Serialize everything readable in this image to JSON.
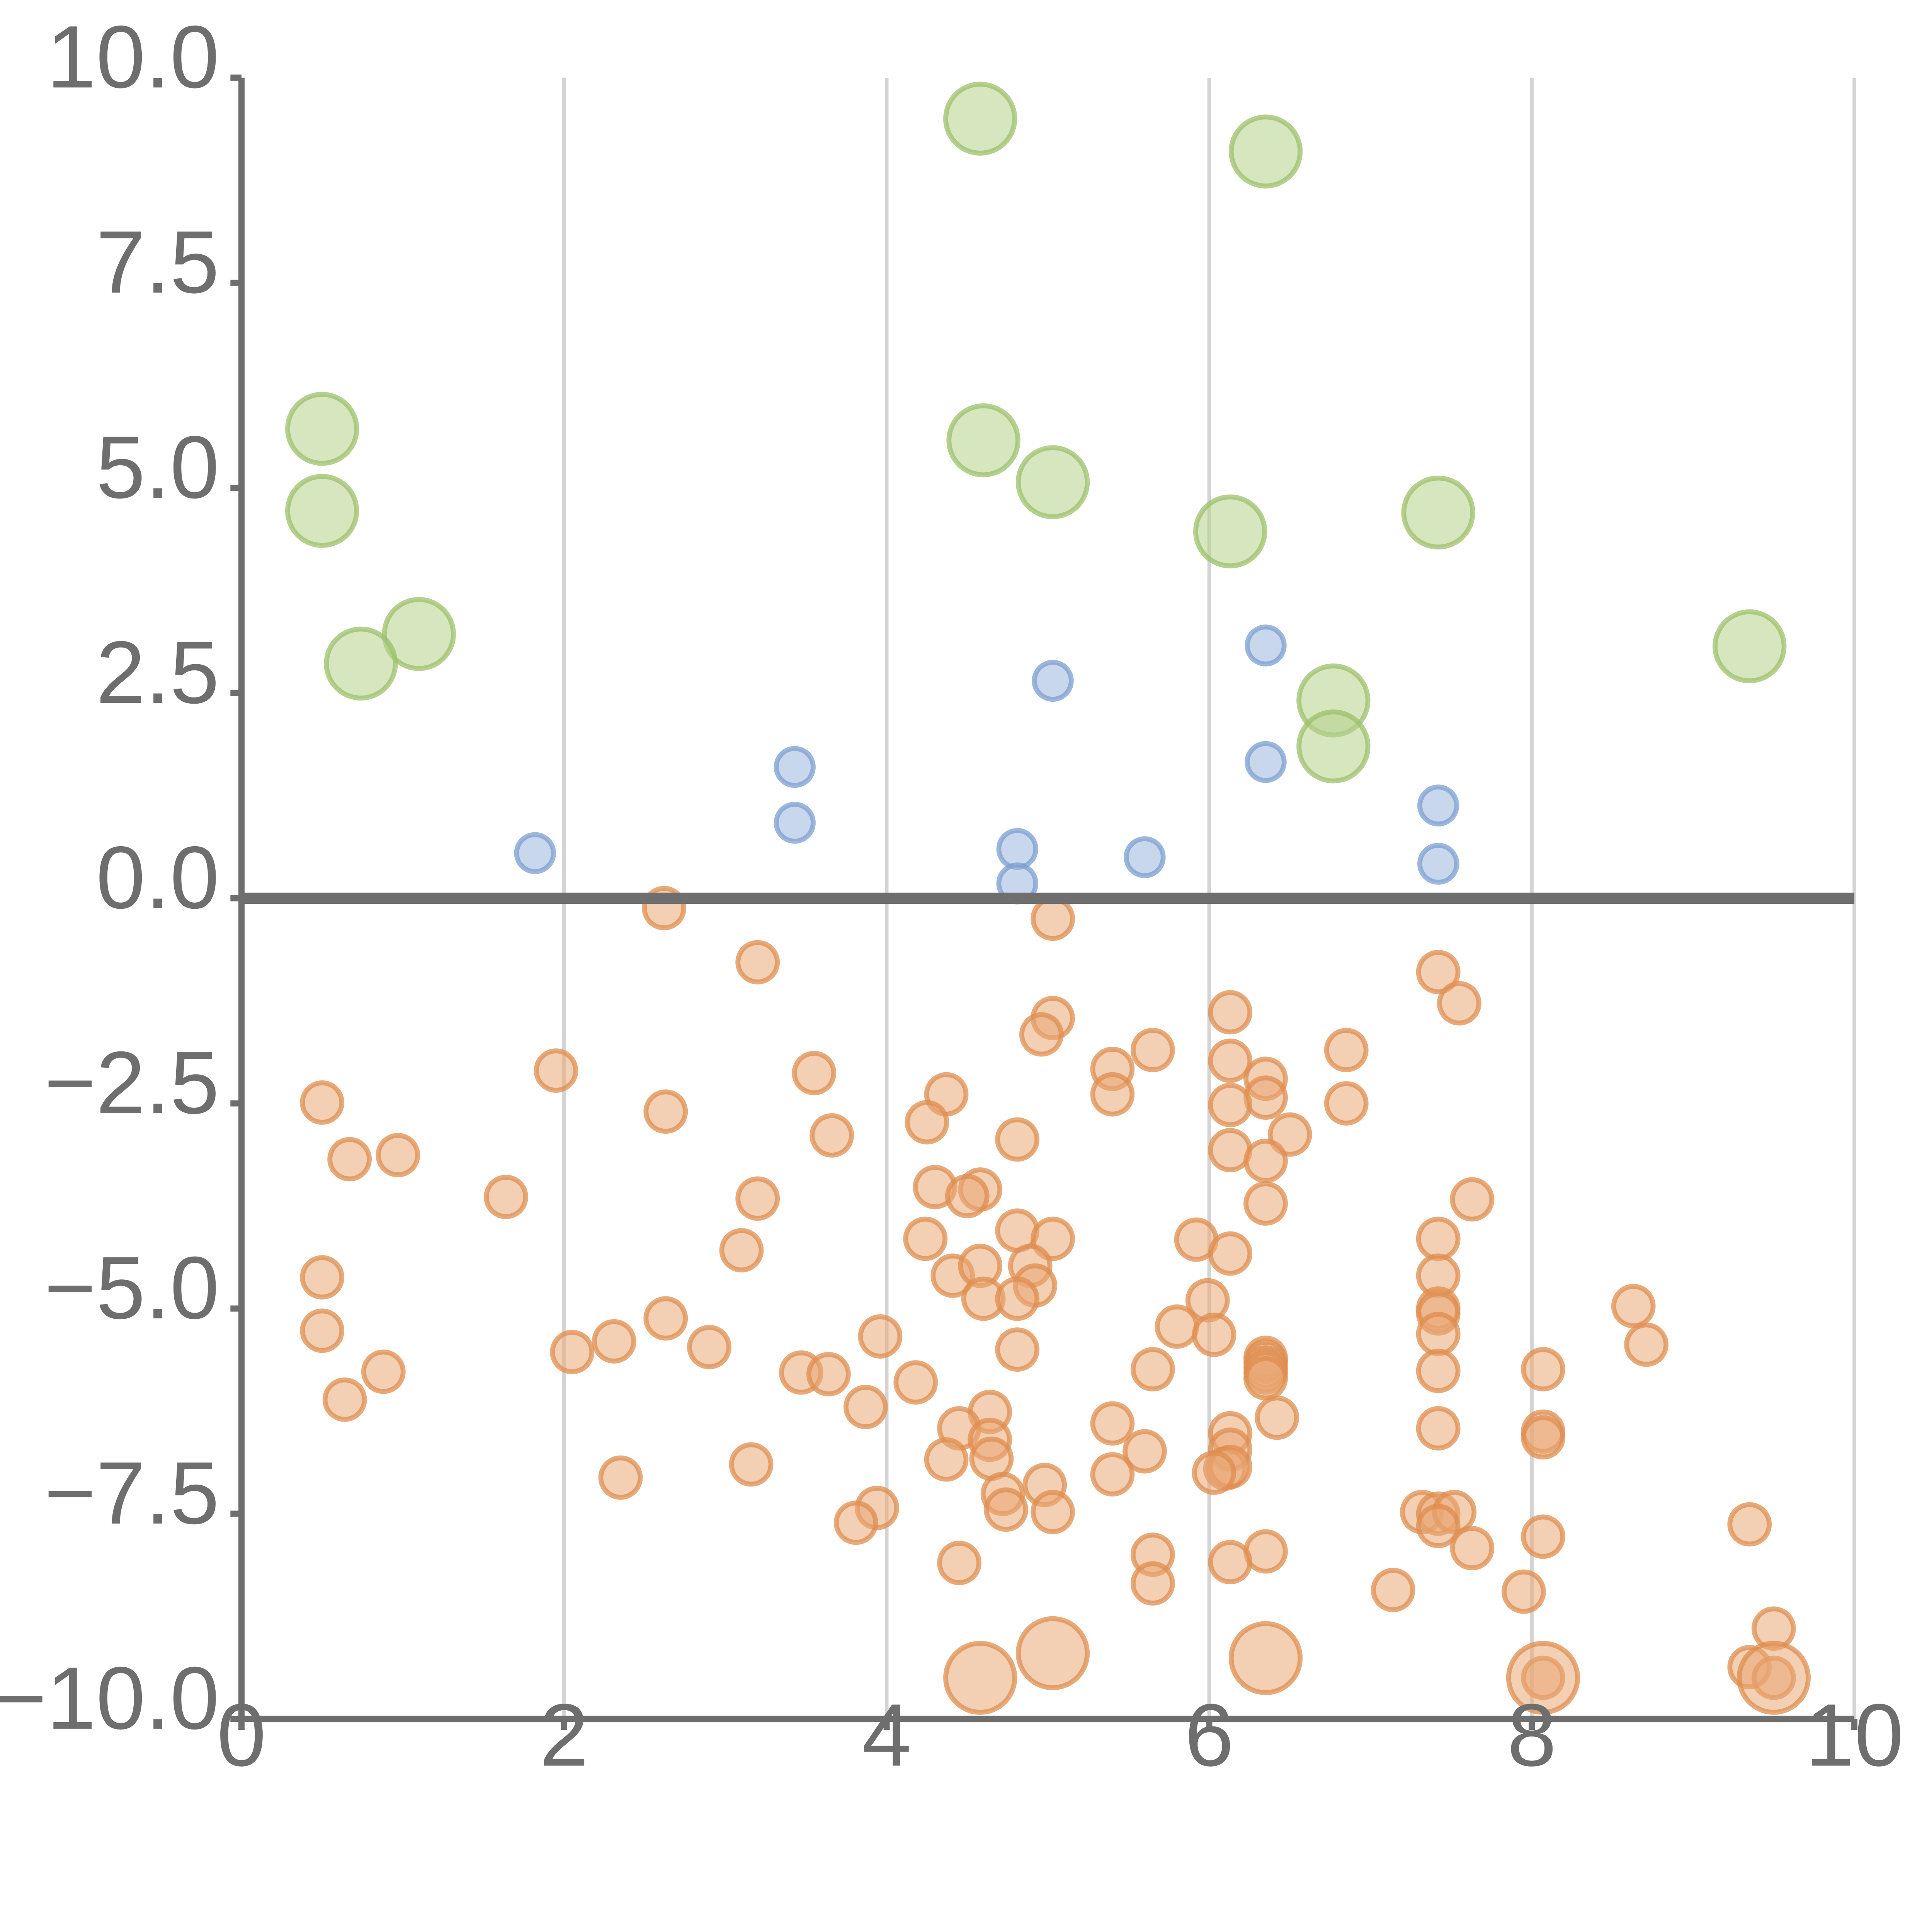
{
  "chart_data": {
    "type": "scatter",
    "title": "",
    "xlabel": "",
    "ylabel": "",
    "xlim": [
      0,
      10
    ],
    "ylim": [
      -10,
      10
    ],
    "grid": {
      "vertical": true,
      "horizontal": false
    },
    "x_ticks": [
      "0",
      "2",
      "4",
      "6",
      "8",
      "10"
    ],
    "x_tick_values": [
      0,
      2,
      4,
      6,
      8,
      10
    ],
    "y_ticks": [
      "10.0",
      "7.5",
      "5.0",
      "2.5",
      "0.0",
      "−2.5",
      "−5.0",
      "−7.5",
      "−10.0"
    ],
    "y_tick_values": [
      10,
      7.5,
      5,
      2.5,
      0,
      -2.5,
      -5,
      -7.5,
      -10
    ],
    "reference_line_y": 0,
    "series": [
      {
        "name": "green",
        "color": "#b5d18a",
        "stroke": "#9cc06a",
        "size": "large",
        "points": [
          [
            4.58,
            9.5
          ],
          [
            6.35,
            9.1
          ],
          [
            0.5,
            5.72
          ],
          [
            0.5,
            4.72
          ],
          [
            4.6,
            5.58
          ],
          [
            5.03,
            5.07
          ],
          [
            6.13,
            4.47
          ],
          [
            7.42,
            4.7
          ],
          [
            1.1,
            3.22
          ],
          [
            0.74,
            2.86
          ],
          [
            9.35,
            3.07
          ],
          [
            6.77,
            2.41
          ],
          [
            6.77,
            1.85
          ]
        ]
      },
      {
        "name": "blue",
        "color": "#9cb7de",
        "stroke": "#7b9fd0",
        "size": "small",
        "points": [
          [
            6.35,
            3.08
          ],
          [
            5.03,
            2.65
          ],
          [
            3.43,
            1.6
          ],
          [
            6.35,
            1.66
          ],
          [
            7.42,
            1.13
          ],
          [
            3.43,
            0.92
          ],
          [
            1.82,
            0.55
          ],
          [
            4.81,
            0.6
          ],
          [
            5.6,
            0.5
          ],
          [
            4.81,
            0.18
          ],
          [
            7.42,
            0.42
          ]
        ]
      },
      {
        "name": "orange",
        "color": "#eaa774",
        "stroke": "#df8e4f",
        "size": "medium",
        "points": [
          [
            2.62,
            -0.12
          ],
          [
            5.03,
            -0.25
          ],
          [
            3.2,
            -0.78
          ],
          [
            7.42,
            -0.9
          ],
          [
            7.55,
            -1.28
          ],
          [
            6.13,
            -1.39
          ],
          [
            5.03,
            -1.46
          ],
          [
            4.96,
            -1.66
          ],
          [
            5.65,
            -1.85
          ],
          [
            6.85,
            -1.85
          ],
          [
            1.95,
            -2.1
          ],
          [
            3.55,
            -2.13
          ],
          [
            5.4,
            -2.08
          ],
          [
            6.13,
            -1.98
          ],
          [
            6.35,
            -2.2
          ],
          [
            6.35,
            -2.43
          ],
          [
            6.85,
            -2.5
          ],
          [
            0.5,
            -2.49
          ],
          [
            2.63,
            -2.6
          ],
          [
            4.37,
            -2.39
          ],
          [
            5.4,
            -2.39
          ],
          [
            6.13,
            -2.52
          ],
          [
            3.66,
            -2.89
          ],
          [
            4.25,
            -2.73
          ],
          [
            4.81,
            -2.94
          ],
          [
            6.5,
            -2.88
          ],
          [
            0.67,
            -3.18
          ],
          [
            0.97,
            -3.13
          ],
          [
            6.13,
            -3.07
          ],
          [
            6.35,
            -3.2
          ],
          [
            4.3,
            -3.52
          ],
          [
            4.58,
            -3.55
          ],
          [
            4.5,
            -3.63
          ],
          [
            1.64,
            -3.64
          ],
          [
            3.2,
            -3.66
          ],
          [
            6.35,
            -3.72
          ],
          [
            7.63,
            -3.67
          ],
          [
            4.24,
            -4.15
          ],
          [
            4.81,
            -4.05
          ],
          [
            5.03,
            -4.15
          ],
          [
            5.92,
            -4.16
          ],
          [
            7.42,
            -4.15
          ],
          [
            3.1,
            -4.29
          ],
          [
            6.13,
            -4.33
          ],
          [
            4.41,
            -4.6
          ],
          [
            4.58,
            -4.48
          ],
          [
            4.89,
            -4.48
          ],
          [
            7.42,
            -4.6
          ],
          [
            0.5,
            -4.62
          ],
          [
            4.92,
            -4.72
          ],
          [
            4.6,
            -4.88
          ],
          [
            4.81,
            -4.88
          ],
          [
            5.99,
            -4.9
          ],
          [
            7.42,
            -5.0
          ],
          [
            7.42,
            -5.06
          ],
          [
            8.63,
            -4.97
          ],
          [
            2.63,
            -5.12
          ],
          [
            0.5,
            -5.27
          ],
          [
            5.8,
            -5.22
          ],
          [
            6.03,
            -5.32
          ],
          [
            7.42,
            -5.31
          ],
          [
            3.96,
            -5.34
          ],
          [
            2.31,
            -5.4
          ],
          [
            2.05,
            -5.53
          ],
          [
            2.9,
            -5.47
          ],
          [
            4.81,
            -5.5
          ],
          [
            8.71,
            -5.44
          ],
          [
            6.35,
            -5.6
          ],
          [
            6.35,
            -5.65
          ],
          [
            6.35,
            -5.72
          ],
          [
            6.35,
            -5.78
          ],
          [
            6.35,
            -5.85
          ],
          [
            0.88,
            -5.77
          ],
          [
            3.47,
            -5.78
          ],
          [
            3.64,
            -5.8
          ],
          [
            5.65,
            -5.74
          ],
          [
            7.42,
            -5.76
          ],
          [
            8.07,
            -5.74
          ],
          [
            4.18,
            -5.9
          ],
          [
            0.64,
            -6.11
          ],
          [
            3.87,
            -6.2
          ],
          [
            4.64,
            -6.26
          ],
          [
            5.4,
            -6.4
          ],
          [
            6.42,
            -6.33
          ],
          [
            7.42,
            -6.46
          ],
          [
            4.45,
            -6.46
          ],
          [
            4.64,
            -6.6
          ],
          [
            6.13,
            -6.52
          ],
          [
            8.07,
            -6.5
          ],
          [
            8.07,
            -6.57
          ],
          [
            5.6,
            -6.74
          ],
          [
            6.13,
            -6.72
          ],
          [
            4.37,
            -6.84
          ],
          [
            4.65,
            -6.83
          ],
          [
            3.16,
            -6.9
          ],
          [
            6.1,
            -6.95
          ],
          [
            6.13,
            -6.93
          ],
          [
            6.03,
            -7.0
          ],
          [
            2.35,
            -7.06
          ],
          [
            5.4,
            -7.02
          ],
          [
            4.72,
            -7.26
          ],
          [
            4.98,
            -7.15
          ],
          [
            7.32,
            -7.48
          ],
          [
            7.42,
            -7.5
          ],
          [
            7.52,
            -7.48
          ],
          [
            3.94,
            -7.43
          ],
          [
            4.74,
            -7.45
          ],
          [
            5.03,
            -7.48
          ],
          [
            3.81,
            -7.61
          ],
          [
            7.42,
            -7.65
          ],
          [
            9.35,
            -7.63
          ],
          [
            8.07,
            -7.78
          ],
          [
            7.63,
            -7.92
          ],
          [
            5.65,
            -8.0
          ],
          [
            6.35,
            -7.96
          ],
          [
            4.45,
            -8.1
          ],
          [
            6.13,
            -8.09
          ],
          [
            5.65,
            -8.35
          ],
          [
            7.14,
            -8.43
          ],
          [
            7.95,
            -8.45
          ],
          [
            9.5,
            -8.9
          ],
          [
            9.35,
            -9.37
          ],
          [
            9.5,
            -9.5
          ],
          [
            8.07,
            -9.5
          ]
        ]
      },
      {
        "name": "orange-large",
        "color": "#eaa774",
        "stroke": "#df8e4f",
        "size": "large",
        "points": [
          [
            4.58,
            -9.5
          ],
          [
            5.03,
            -9.2
          ],
          [
            6.35,
            -9.26
          ],
          [
            8.07,
            -9.5
          ],
          [
            9.5,
            -9.5
          ]
        ]
      }
    ]
  }
}
